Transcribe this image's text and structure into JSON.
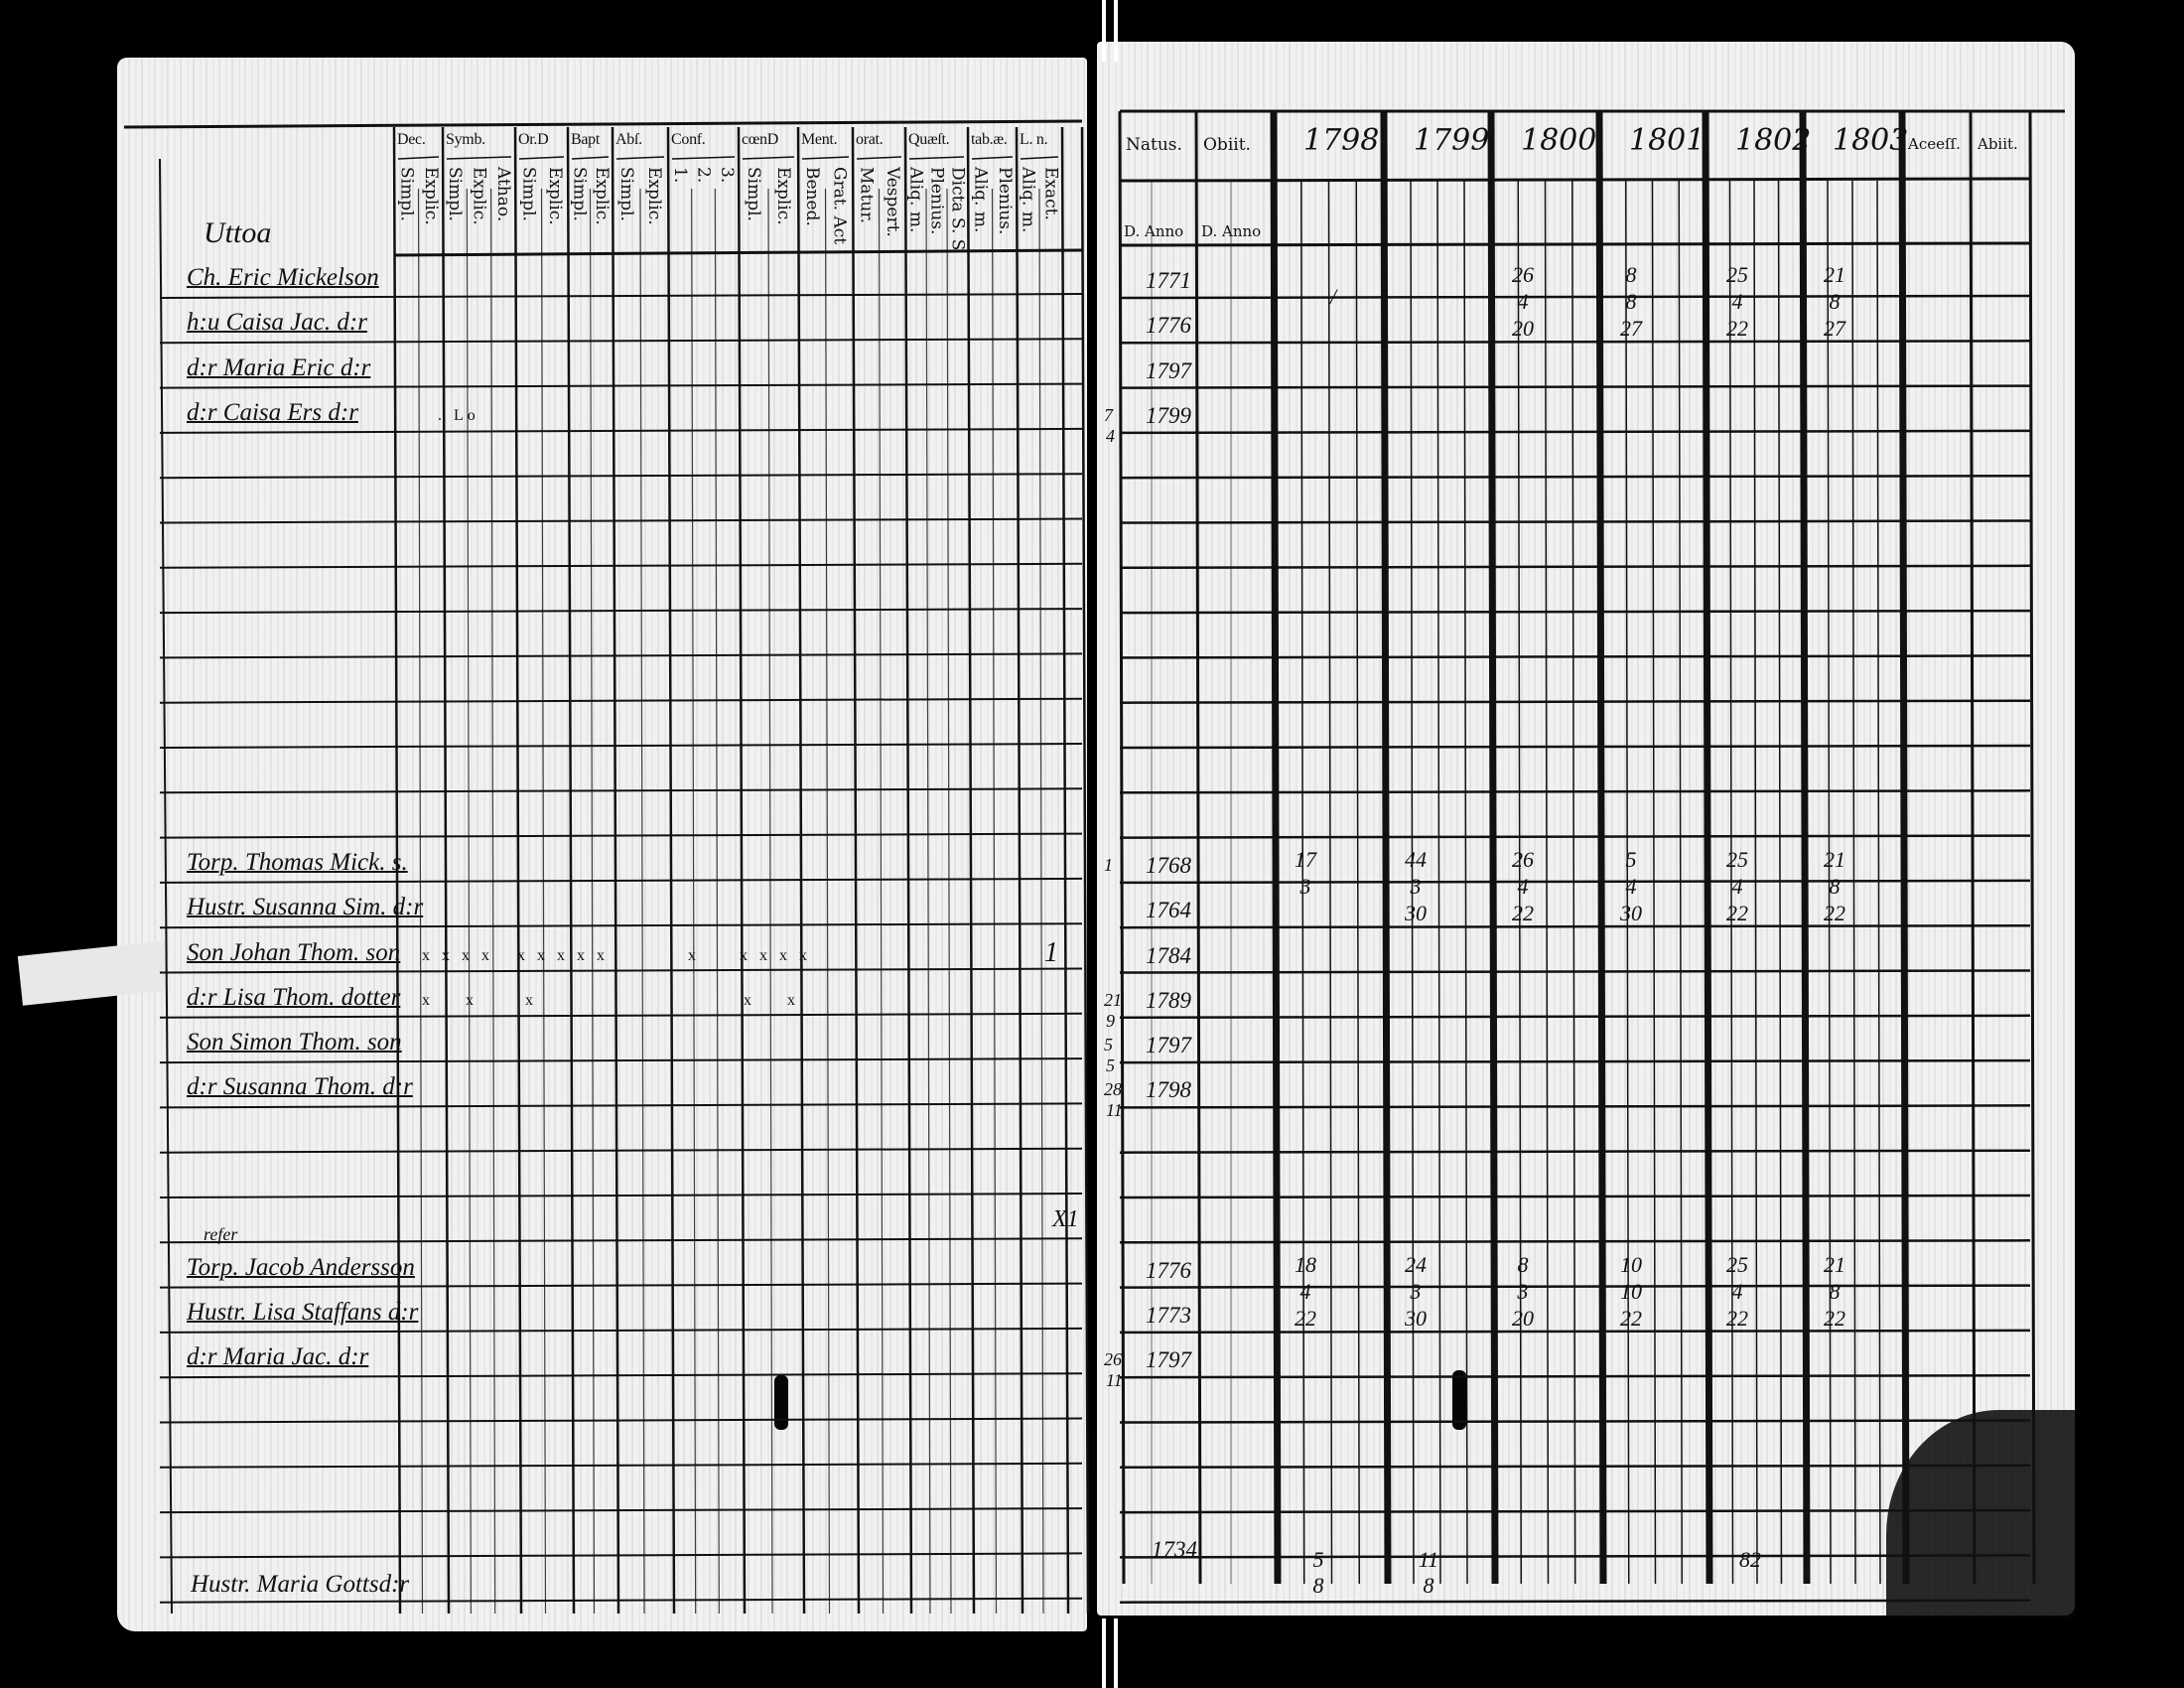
{
  "left_page": {
    "column_groups": [
      {
        "label": "Dec.",
        "subs": [
          "Simpl.",
          "Explic."
        ]
      },
      {
        "label": "Symb.",
        "subs": [
          "Simpl.",
          "Explic.",
          "Athao."
        ]
      },
      {
        "label": "Or.D",
        "subs": [
          "Simpl.",
          "Explic."
        ]
      },
      {
        "label": "Bapt",
        "subs": [
          "Simpl.",
          "Explic."
        ]
      },
      {
        "label": "Abſ.",
        "subs": [
          "Simpl.",
          "Explic."
        ]
      },
      {
        "label": "Conf.",
        "subs": [
          "1.",
          "2.",
          "3."
        ]
      },
      {
        "label": "cœnD",
        "subs": [
          "Simpl.",
          "Explic."
        ]
      },
      {
        "label": "Ment.",
        "subs": [
          "Bened.",
          "Grat. Act"
        ]
      },
      {
        "label": "orat.",
        "subs": [
          "Matur.",
          "Vespert."
        ]
      },
      {
        "label": "Quæſt.",
        "subs": [
          "Aliq. m.",
          "Plenius.",
          "Dicta S. S"
        ]
      },
      {
        "label": "tab.æ.",
        "subs": [
          "Aliq. m.",
          "Plenius."
        ]
      },
      {
        "label": "L. n.",
        "subs": [
          "Aliq. m.",
          "Exact."
        ]
      }
    ],
    "place_heading": "Uttoa",
    "households": [
      {
        "note": "",
        "members": [
          {
            "name": "Ch. Eric Mickelson",
            "marks": ""
          },
          {
            "name": "h:u Caisa Jac. d:r",
            "marks": ""
          },
          {
            "name": "d:r Maria Eric d:r",
            "marks": ""
          },
          {
            "name": "d:r Caisa Ers d:r",
            "marks": "  . Lo"
          }
        ]
      },
      {
        "note": "",
        "members": [
          {
            "name": "Torp. Thomas Mick. s.",
            "marks": ""
          },
          {
            "name": "Hustr. Susanna Sim. d:r",
            "marks": ""
          },
          {
            "name": "Son Johan Thom. son",
            "marks": "x x x x   x x x x x          x     x x x x"
          },
          {
            "name": "d:r Lisa Thom. dotter",
            "marks": "x    x      x                          x    x"
          },
          {
            "name": "Son Simon Thom. son",
            "marks": ""
          },
          {
            "name": "d:r Susanna Thom. d:r",
            "marks": ""
          }
        ]
      },
      {
        "note": "refer",
        "members": [
          {
            "name": "Torp. Jacob Andersson",
            "marks": ""
          },
          {
            "name": "Hustr. Lisa Staffans d:r",
            "marks": ""
          },
          {
            "name": "d:r Maria Jac. d:r",
            "marks": ""
          }
        ]
      }
    ],
    "footer_name": "Hustr. Maria Gottsd:r",
    "margin_marks": [
      "1",
      "X1"
    ]
  },
  "right_page": {
    "headers": {
      "natus": "Natus.",
      "obiit": "Obiit.",
      "accessit": "Aceeſſ.",
      "abiit": "Abiit.",
      "d_anno_1": "D. Anno",
      "d_anno_2": "D. Anno"
    },
    "years": [
      "1798",
      "1799",
      "1800",
      "1801",
      "1802",
      "1803"
    ],
    "households": [
      {
        "births": [
          {
            "day": "",
            "year": "1771",
            "month": ""
          },
          {
            "day": "",
            "year": "1776",
            "month": ""
          },
          {
            "day": "",
            "year": "1797",
            "month": ""
          },
          {
            "day": "7",
            "year": "1799",
            "month": "4"
          }
        ],
        "year_entries": {
          "1798": [
            "/"
          ],
          "1799": [],
          "1800": [
            "26",
            "4",
            "20"
          ],
          "1801": [
            "8",
            "8",
            "27"
          ],
          "1802": [
            "25",
            "4",
            "22"
          ],
          "1803": [
            "21",
            "8",
            "27"
          ]
        }
      },
      {
        "births": [
          {
            "day": "1",
            "year": "1768",
            "month": ""
          },
          {
            "day": "",
            "year": "1764",
            "month": ""
          },
          {
            "day": "",
            "year": "1784",
            "month": ""
          },
          {
            "day": "21",
            "year": "1789",
            "month": "9"
          },
          {
            "day": "5",
            "year": "1797",
            "month": "5"
          },
          {
            "day": "28",
            "year": "1798",
            "month": "11"
          }
        ],
        "year_entries": {
          "1798": [
            "17",
            "3"
          ],
          "1799": [
            "44",
            "3",
            "30"
          ],
          "1800": [
            "26",
            "4",
            "22"
          ],
          "1801": [
            "5",
            "4",
            "30"
          ],
          "1802": [
            "25",
            "4",
            "22"
          ],
          "1803": [
            "21",
            "8",
            "22"
          ]
        }
      },
      {
        "births": [
          {
            "day": "",
            "year": "1776",
            "month": ""
          },
          {
            "day": "",
            "year": "1773",
            "month": ""
          },
          {
            "day": "26",
            "year": "1797",
            "month": "11"
          }
        ],
        "year_entries": {
          "1798": [
            "18",
            "4",
            "22"
          ],
          "1799": [
            "24",
            "3",
            "30"
          ],
          "1800": [
            "8",
            "3",
            "20"
          ],
          "1801": [
            "10",
            "10",
            "22"
          ],
          "1802": [
            "25",
            "4",
            "22"
          ],
          "1803": [
            "21",
            "8",
            "22"
          ]
        }
      }
    ],
    "footer_birth": "1734",
    "footer_marks": [
      {
        "col": "1798",
        "values": [
          "5",
          "8"
        ]
      },
      {
        "col": "1799",
        "values": [
          "11",
          "8"
        ]
      },
      {
        "col": "1802",
        "values": [
          "82"
        ]
      }
    ]
  },
  "colors": {
    "background": "#000000",
    "paper": "#f1f1f1",
    "ink": "#111111"
  }
}
